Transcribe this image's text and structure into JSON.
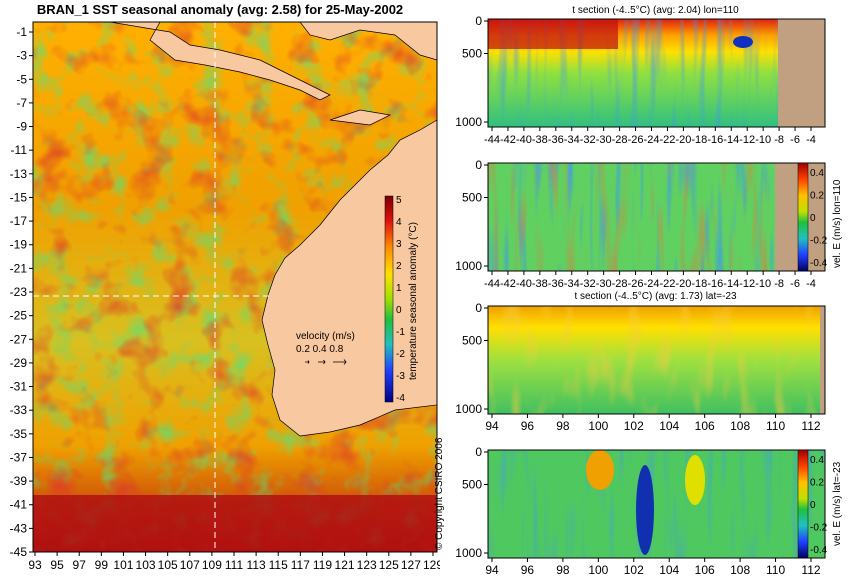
{
  "chart_data": [
    {
      "type": "heatmap",
      "title": "BRAN_1  SST seasonal anomaly  (avg: 2.58)  for 25-May-2002",
      "x_ticks": [
        "93",
        "95",
        "97",
        "99",
        "101",
        "103",
        "105",
        "107",
        "109",
        "111",
        "113",
        "115",
        "117",
        "119",
        "121",
        "123",
        "125",
        "127",
        "129"
      ],
      "y_ticks": [
        "-1",
        "-3",
        "-5",
        "-7",
        "-9",
        "-11",
        "-13",
        "-15",
        "-17",
        "-19",
        "-21",
        "-23",
        "-25",
        "-27",
        "-29",
        "-31",
        "-33",
        "-35",
        "-37",
        "-39",
        "-41",
        "-43",
        "-45"
      ],
      "colorbar": {
        "label": "temperature seasonal anomaly (°C)",
        "ticks": [
          "5",
          "4",
          "3",
          "2",
          "1",
          "0",
          "-1",
          "-2",
          "-3",
          "-4"
        ],
        "range": [
          -4,
          5
        ]
      },
      "velocity_legend": {
        "label": "velocity (m/s)",
        "values": "0.2 0.4 0.8"
      },
      "crosshair": {
        "lon": 110,
        "lat": -23
      }
    },
    {
      "type": "heatmap",
      "title": "t section (-4..5°C)  (avg: 2.04)  lon=110",
      "x_ticks": [
        "-44",
        "-42",
        "-40",
        "-38",
        "-36",
        "-34",
        "-32",
        "-30",
        "-28",
        "-26",
        "-24",
        "-22",
        "-20",
        "-18",
        "-16",
        "-14",
        "-12",
        "-10",
        "-8",
        "-6",
        "-4"
      ],
      "y_ticks": [
        "0",
        "500",
        "1000"
      ]
    },
    {
      "type": "heatmap",
      "title": "",
      "x_ticks": [
        "-44",
        "-42",
        "-40",
        "-38",
        "-36",
        "-34",
        "-32",
        "-30",
        "-28",
        "-26",
        "-24",
        "-22",
        "-20",
        "-18",
        "-16",
        "-14",
        "-12",
        "-10",
        "-8",
        "-6",
        "-4"
      ],
      "y_ticks": [
        "0",
        "500",
        "1000"
      ],
      "colorbar": {
        "label": "vel. E (m/s) lon=110",
        "ticks": [
          "0.4",
          "0.2",
          "0",
          "-0.2",
          "-0.4"
        ],
        "range": [
          -0.4,
          0.4
        ]
      }
    },
    {
      "type": "heatmap",
      "title": "t section (-4..5°C)  (avg: 1.73)  lat=-23",
      "x_ticks": [
        "94",
        "96",
        "98",
        "100",
        "102",
        "104",
        "106",
        "108",
        "110",
        "112"
      ],
      "y_ticks": [
        "0",
        "500",
        "1000"
      ]
    },
    {
      "type": "heatmap",
      "title": "",
      "x_ticks": [
        "94",
        "96",
        "98",
        "100",
        "102",
        "104",
        "106",
        "108",
        "110",
        "112"
      ],
      "y_ticks": [
        "0",
        "500",
        "1000"
      ],
      "colorbar": {
        "label": "vel. E (m/s) lat=-23",
        "ticks": [
          "0.4",
          "0.2",
          "0",
          "-0.2",
          "-0.4"
        ],
        "range": [
          -0.4,
          0.4
        ]
      }
    }
  ],
  "copyright": "© Copyright CSIRO 2006"
}
